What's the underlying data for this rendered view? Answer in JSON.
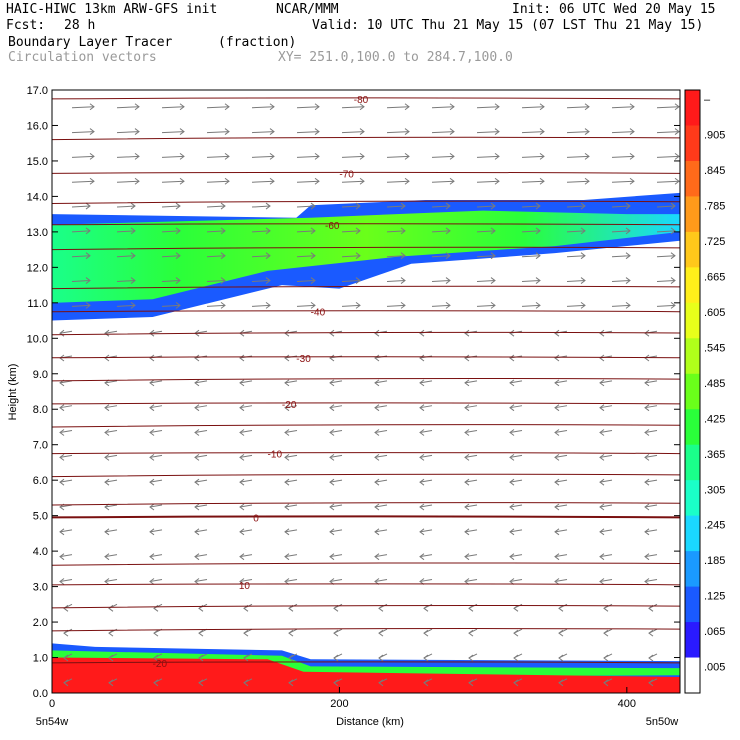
{
  "header": {
    "model": "HAIC-HIWC 13km ARW-GFS init",
    "org": "NCAR/MMM",
    "init": "Init: 06 UTC Wed 20 May 15",
    "fcst_label": "Fcst:",
    "fcst_value": "28 h",
    "valid": "Valid: 10 UTC Thu 21 May 15 (07 LST Thu 21 May 15)",
    "field1": "Boundary Layer Tracer",
    "field1_units": "(fraction)",
    "field2": "Circulation vectors",
    "xy_range": "XY= 251.0,100.0 to 284.7,100.0"
  },
  "chart_data": {
    "type": "heatmap",
    "ylabel": "Height (km)",
    "xlabel": "Distance (km)",
    "ylim": [
      0,
      17
    ],
    "xlim": [
      0,
      437
    ],
    "y_ticks": [
      "0.0",
      "1.0",
      "2.0",
      "3.0",
      "4.0",
      "5.0",
      "6.0",
      "7.0",
      "8.0",
      "9.0",
      "10.0",
      "11.0",
      "12.0",
      "13.0",
      "14.0",
      "15.0",
      "16.0",
      "17.0"
    ],
    "x_ticks": [
      {
        "v": 0,
        "label": "0"
      },
      {
        "v": 200,
        "label": "200"
      },
      {
        "v": 400,
        "label": "400"
      }
    ],
    "x_end_labels": {
      "left": "5n54w",
      "right": "5n50w"
    },
    "colorbar": {
      "labels": [
        "–",
        ".905",
        ".845",
        ".785",
        ".725",
        ".665",
        ".605",
        ".545",
        ".485",
        ".425",
        ".365",
        ".305",
        ".245",
        ".185",
        ".125",
        ".065",
        ".005"
      ],
      "colors": [
        "#ff1a1a",
        "#ff3a1a",
        "#ff6a1a",
        "#ff9a1a",
        "#ffc81a",
        "#ffef1a",
        "#e8ff1a",
        "#b0ff1a",
        "#6aff1a",
        "#2aff3a",
        "#1aff8a",
        "#1affc8",
        "#1ad8ff",
        "#1a9aff",
        "#1a5aff",
        "#2a1aff",
        "#ffffff"
      ]
    },
    "temperature_contours": [
      {
        "label": "-80",
        "y": 16.75
      },
      {
        "label": "-70",
        "y": 14.65
      },
      {
        "label": "-60",
        "y": 13.2
      },
      {
        "label": "-40",
        "y": 10.75
      },
      {
        "label": "-30",
        "y": 9.45
      },
      {
        "label": "-20",
        "y": 8.15
      },
      {
        "label": "-10",
        "y": 6.75
      },
      {
        "label": "0",
        "y": 4.95
      },
      {
        "label": "10",
        "y": 3.05
      },
      {
        "label": "-20",
        "y": 0.85
      }
    ],
    "upper_tracer_layer": {
      "base_km": [
        10.5,
        11.8
      ],
      "top_km": [
        13.5,
        14.1
      ]
    },
    "boundary_layer_top_km": [
      1.4,
      0.9
    ]
  }
}
